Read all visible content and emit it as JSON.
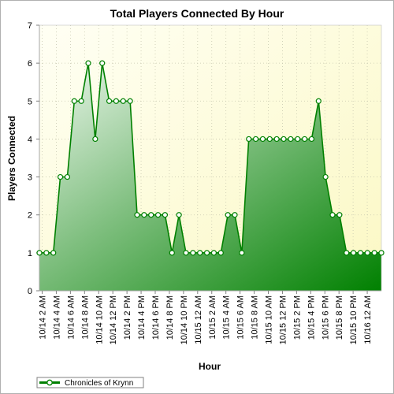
{
  "chart_data": {
    "type": "area",
    "title": "Total Players Connected By Hour",
    "xlabel": "Hour",
    "ylabel": "Players Connected",
    "ylim": [
      0,
      7
    ],
    "yticks": [
      "0",
      "1",
      "2",
      "3",
      "4",
      "5",
      "6",
      "7"
    ],
    "grid": true,
    "legend_position": "bottom-left",
    "x_tick_labels": [
      "10/14 2 AM",
      "10/14 4 AM",
      "10/14 6 AM",
      "10/14 8 AM",
      "10/14 10 AM",
      "10/14 12 PM",
      "10/14 2 PM",
      "10/14 4 PM",
      "10/14 6 PM",
      "10/14 8 PM",
      "10/14 10 PM",
      "10/15 12 AM",
      "10/15 2 AM",
      "10/15 4 AM",
      "10/15 6 AM",
      "10/15 8 AM",
      "10/15 10 AM",
      "10/15 12 PM",
      "10/15 2 PM",
      "10/15 4 PM",
      "10/15 6 PM",
      "10/15 8 PM",
      "10/15 10 PM",
      "10/16 12 AM"
    ],
    "series": [
      {
        "name": "Chronicles of Krynn",
        "color": "#008000",
        "values": [
          1,
          1,
          1,
          3,
          3,
          5,
          5,
          6,
          4,
          6,
          5,
          5,
          5,
          5,
          2,
          2,
          2,
          2,
          2,
          1,
          2,
          1,
          1,
          1,
          1,
          1,
          1,
          2,
          2,
          1,
          4,
          4,
          4,
          4,
          4,
          4,
          4,
          4,
          4,
          4,
          5,
          3,
          2,
          2,
          1,
          1,
          1,
          1,
          1,
          1
        ]
      }
    ]
  },
  "colors": {
    "plot_background_top": "#fffff0",
    "plot_background_corner": "#fbf9c8",
    "area_light": "#e6f3e6",
    "area_dark": "#008000",
    "line": "#008000",
    "grid": "#c8c8b4"
  }
}
